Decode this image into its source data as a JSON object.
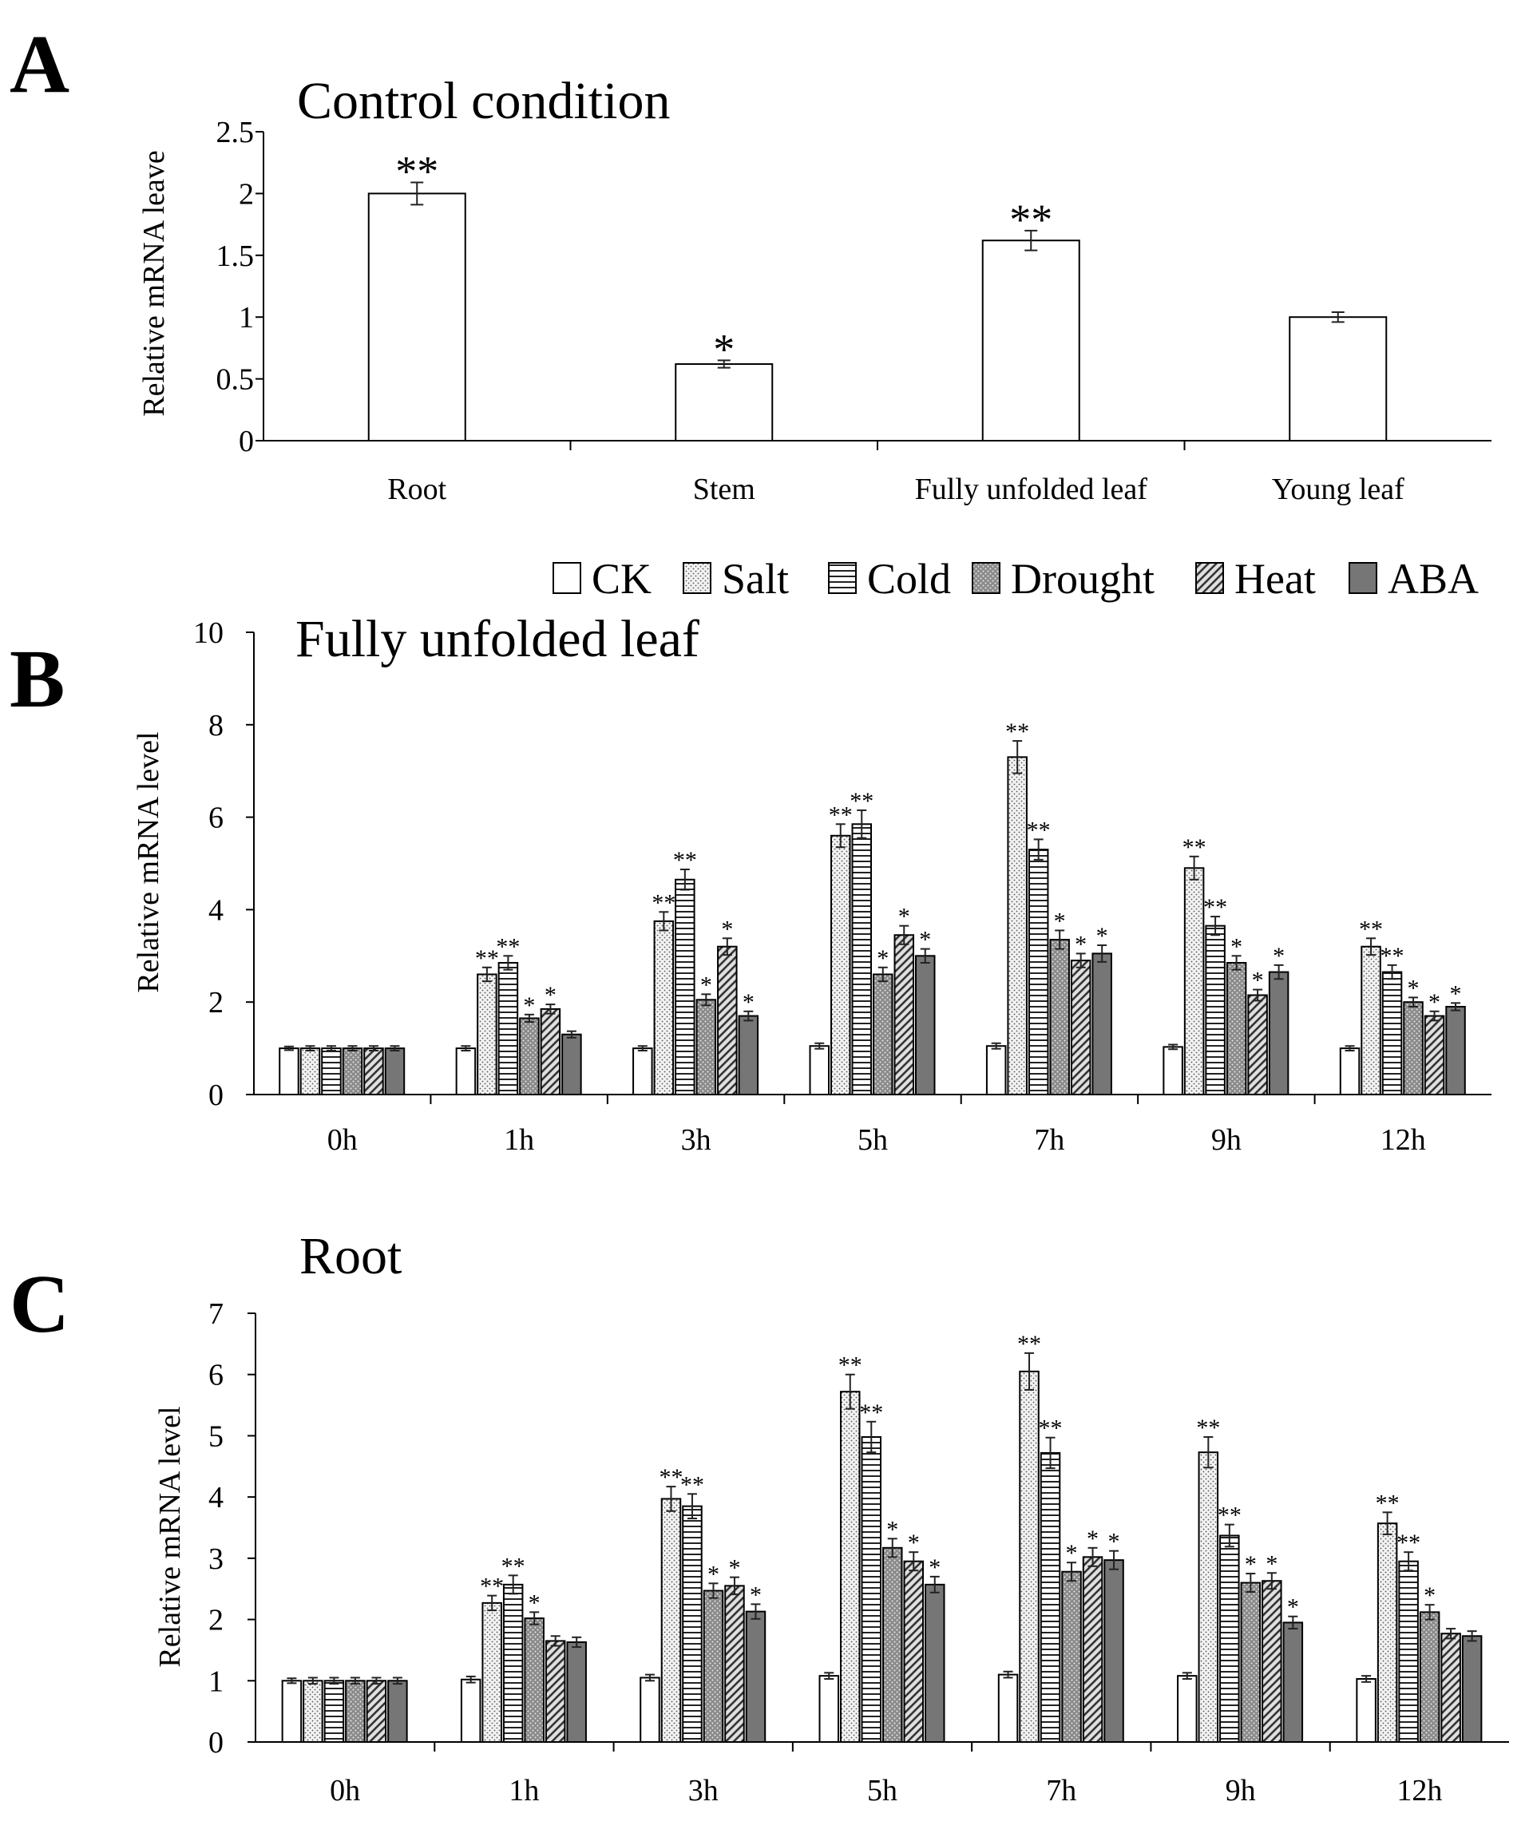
{
  "chart_data": [
    {
      "panel": "A",
      "type": "bar",
      "title": "Control condition",
      "ylabel": "Relative mRNA leave",
      "xlabel": "",
      "ylim": [
        0,
        2.5
      ],
      "yticks": [
        "0",
        "0.5",
        "1",
        "1.5",
        "2",
        "2.5"
      ],
      "categories": [
        "Root",
        "Stem",
        "Fully unfolded leaf",
        "Young leaf"
      ],
      "series": [
        {
          "name": "Control",
          "values": [
            2.0,
            0.62,
            1.62,
            1.0
          ],
          "errors": [
            0.09,
            0.03,
            0.08,
            0.04
          ],
          "sig": [
            "**",
            "*",
            "**",
            ""
          ]
        }
      ]
    },
    {
      "panel": "B",
      "type": "bar",
      "title": "Fully unfolded leaf",
      "ylabel": "Relative mRNA level",
      "xlabel": "",
      "ylim": [
        0,
        10
      ],
      "yticks": [
        "0",
        "2",
        "4",
        "6",
        "8",
        "10"
      ],
      "categories": [
        "0h",
        "1h",
        "3h",
        "5h",
        "7h",
        "9h",
        "12h"
      ],
      "series": [
        {
          "name": "CK",
          "values": [
            1.0,
            1.0,
            1.0,
            1.05,
            1.05,
            1.03,
            1.0
          ],
          "errors": [
            0.04,
            0.05,
            0.05,
            0.06,
            0.06,
            0.05,
            0.05
          ],
          "sig": [
            "",
            "",
            "",
            "",
            "",
            "",
            ""
          ]
        },
        {
          "name": "Salt",
          "values": [
            1.0,
            2.6,
            3.75,
            5.6,
            7.3,
            4.9,
            3.2
          ],
          "errors": [
            0.05,
            0.15,
            0.2,
            0.25,
            0.35,
            0.25,
            0.18
          ],
          "sig": [
            "",
            "**",
            "**",
            "**",
            "**",
            "**",
            "**"
          ]
        },
        {
          "name": "Cold",
          "values": [
            1.0,
            2.85,
            4.65,
            5.85,
            5.3,
            3.65,
            2.65
          ],
          "errors": [
            0.05,
            0.15,
            0.22,
            0.3,
            0.22,
            0.2,
            0.15
          ],
          "sig": [
            "",
            "**",
            "**",
            "**",
            "**",
            "**",
            "**"
          ]
        },
        {
          "name": "Drought",
          "values": [
            1.0,
            1.65,
            2.05,
            2.6,
            3.35,
            2.85,
            2.0
          ],
          "errors": [
            0.05,
            0.08,
            0.12,
            0.15,
            0.2,
            0.15,
            0.1
          ],
          "sig": [
            "",
            "*",
            "*",
            "*",
            "*",
            "*",
            "*"
          ]
        },
        {
          "name": "Heat",
          "values": [
            1.0,
            1.85,
            3.2,
            3.45,
            2.9,
            2.15,
            1.7
          ],
          "errors": [
            0.05,
            0.1,
            0.18,
            0.2,
            0.15,
            0.12,
            0.1
          ],
          "sig": [
            "",
            "*",
            "*",
            "*",
            "*",
            "*",
            "*"
          ]
        },
        {
          "name": "ABA",
          "values": [
            1.0,
            1.3,
            1.7,
            3.0,
            3.05,
            2.65,
            1.9
          ],
          "errors": [
            0.05,
            0.07,
            0.1,
            0.15,
            0.18,
            0.15,
            0.08
          ],
          "sig": [
            "",
            "",
            "*",
            "*",
            "*",
            "*",
            "*"
          ]
        }
      ]
    },
    {
      "panel": "C",
      "type": "bar",
      "title": "Root",
      "ylabel": "Relative mRNA level",
      "xlabel": "",
      "ylim": [
        0,
        7
      ],
      "yticks": [
        "0",
        "1",
        "2",
        "3",
        "4",
        "5",
        "6",
        "7"
      ],
      "categories": [
        "0h",
        "1h",
        "3h",
        "5h",
        "7h",
        "9h",
        "12h"
      ],
      "series": [
        {
          "name": "CK",
          "values": [
            1.0,
            1.02,
            1.05,
            1.08,
            1.1,
            1.08,
            1.03
          ],
          "errors": [
            0.04,
            0.05,
            0.05,
            0.05,
            0.05,
            0.05,
            0.05
          ],
          "sig": [
            "",
            "",
            "",
            "",
            "",
            "",
            ""
          ]
        },
        {
          "name": "Salt",
          "values": [
            1.0,
            2.27,
            3.97,
            5.72,
            6.05,
            4.73,
            3.57
          ],
          "errors": [
            0.05,
            0.12,
            0.2,
            0.28,
            0.3,
            0.25,
            0.18
          ],
          "sig": [
            "",
            "**",
            "**",
            "**",
            "**",
            "**",
            "**"
          ]
        },
        {
          "name": "Cold",
          "values": [
            1.0,
            2.57,
            3.85,
            4.98,
            4.72,
            3.37,
            2.95
          ],
          "errors": [
            0.05,
            0.15,
            0.2,
            0.25,
            0.25,
            0.18,
            0.15
          ],
          "sig": [
            "",
            "**",
            "**",
            "**",
            "**",
            "**",
            "**"
          ]
        },
        {
          "name": "Drought",
          "values": [
            1.0,
            2.02,
            2.47,
            3.17,
            2.78,
            2.6,
            2.12
          ],
          "errors": [
            0.05,
            0.1,
            0.12,
            0.15,
            0.15,
            0.15,
            0.12
          ],
          "sig": [
            "",
            "*",
            "*",
            "*",
            "*",
            "*",
            "*"
          ]
        },
        {
          "name": "Heat",
          "values": [
            1.0,
            1.65,
            2.55,
            2.95,
            3.02,
            2.63,
            1.77
          ],
          "errors": [
            0.05,
            0.08,
            0.14,
            0.15,
            0.15,
            0.13,
            0.08
          ],
          "sig": [
            "",
            "",
            "*",
            "*",
            "*",
            "*",
            ""
          ]
        },
        {
          "name": "ABA",
          "values": [
            1.0,
            1.63,
            2.13,
            2.57,
            2.97,
            1.95,
            1.73
          ],
          "errors": [
            0.05,
            0.08,
            0.12,
            0.13,
            0.15,
            0.1,
            0.08
          ],
          "sig": [
            "",
            "",
            "*",
            "*",
            "*",
            "*",
            ""
          ]
        }
      ]
    }
  ],
  "panels": {
    "A": {
      "letter": "A",
      "title": "Control condition",
      "ylabel": "Relative mRNA leave"
    },
    "B": {
      "letter": "B",
      "title": "Fully unfolded leaf",
      "ylabel": "Relative mRNA level"
    },
    "C": {
      "letter": "C",
      "title": "Root",
      "ylabel": "Relative mRNA level"
    }
  },
  "legend": {
    "items": [
      {
        "label": "CK",
        "pattern": "ck"
      },
      {
        "label": "Salt",
        "pattern": "salt"
      },
      {
        "label": "Cold",
        "pattern": "cold"
      },
      {
        "label": "Drought",
        "pattern": "drought"
      },
      {
        "label": "Heat",
        "pattern": "heat"
      },
      {
        "label": "ABA",
        "pattern": "aba"
      }
    ]
  },
  "colors": {
    "axis": "#000000",
    "bar_outline": "#000000",
    "ck_fill": "#ffffff",
    "salt_bg": "#f2f2f2",
    "cold_bg": "#ffffff",
    "drought_bg": "#8a8a8a",
    "heat_bg": "#e0e0e0",
    "aba_fill": "#767676"
  }
}
